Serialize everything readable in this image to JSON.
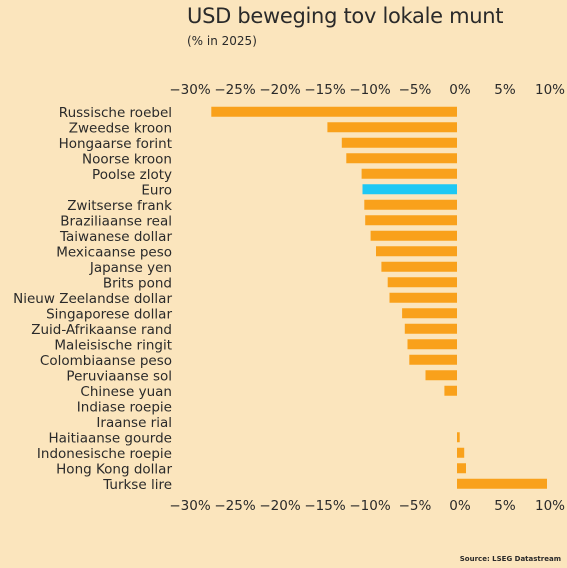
{
  "chart_data": {
    "type": "bar",
    "orientation": "horizontal",
    "title": "USD beweging tov lokale munt",
    "subtitle": "(% in 2025)",
    "source": "Source: LSEG Datastream",
    "xlim": [
      -30,
      10
    ],
    "x_ticks": [
      -30,
      -25,
      -20,
      -15,
      -10,
      -5,
      0,
      5,
      10
    ],
    "x_tick_labels": [
      "−30%",
      "−25%",
      "−20%",
      "−15%",
      "−10%",
      "−5%",
      "0%",
      "5%",
      "10%"
    ],
    "grid": false,
    "colors": {
      "default": "#f9a11b",
      "highlight": "#1ec8f4"
    },
    "highlight": "Euro",
    "categories": [
      "Russische roebel",
      "Zweedse kroon",
      "Hongaarse forint",
      "Noorse kroon",
      "Poolse zloty",
      "Euro",
      "Zwitserse frank",
      "Braziliaanse real",
      "Taiwanese dollar",
      "Mexicaanse peso",
      "Japanse yen",
      "Brits pond",
      "Nieuw Zeelandse dollar",
      "Singaporese dollar",
      "Zuid-Afrikaanse rand",
      "Maleisische ringit",
      "Colombiaanse peso",
      "Peruviaanse sol",
      "Chinese yuan",
      "Indiase roepie",
      "Iraanse rial",
      "Haitiaanse gourde",
      "Indonesische roepie",
      "Hong Kong dollar",
      "Turkse lire"
    ],
    "values": [
      -27.3,
      -14.4,
      -12.8,
      -12.3,
      -10.6,
      -10.5,
      -10.3,
      -10.2,
      -9.6,
      -9.0,
      -8.4,
      -7.7,
      -7.5,
      -6.1,
      -5.8,
      -5.5,
      -5.3,
      -3.5,
      -1.4,
      0.0,
      0.0,
      0.3,
      0.8,
      1.0,
      10.0
    ]
  }
}
